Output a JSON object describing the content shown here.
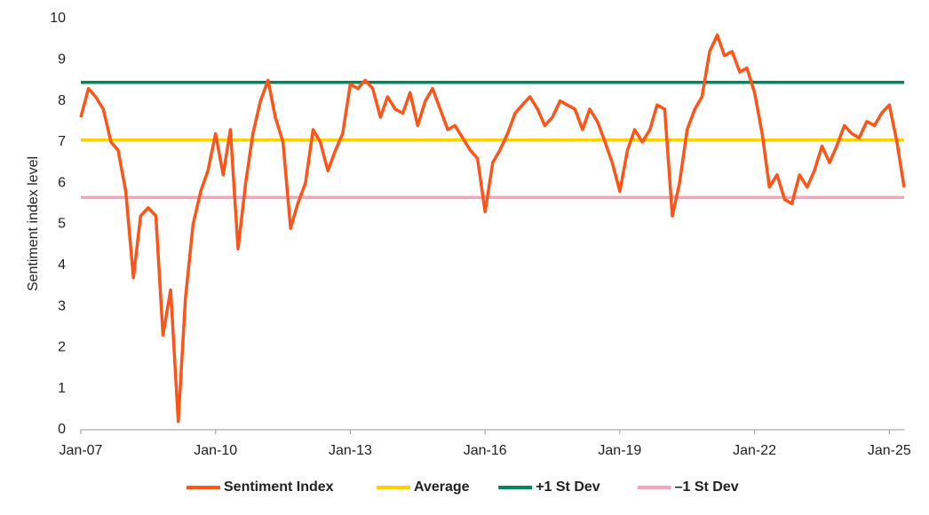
{
  "chart_data": {
    "type": "line",
    "y_label": "Sentiment index level",
    "xlim": [
      2007,
      2025.33
    ],
    "ylim": [
      0,
      10
    ],
    "yticks": [
      0,
      1,
      2,
      3,
      4,
      5,
      6,
      7,
      8,
      9,
      10
    ],
    "xticks": [
      {
        "value": 2007,
        "label": "Jan-07"
      },
      {
        "value": 2010,
        "label": "Jan-10"
      },
      {
        "value": 2013,
        "label": "Jan-13"
      },
      {
        "value": 2016,
        "label": "Jan-16"
      },
      {
        "value": 2019,
        "label": "Jan-19"
      },
      {
        "value": 2022,
        "label": "Jan-22"
      },
      {
        "value": 2025,
        "label": "Jan-25"
      }
    ],
    "grid": false,
    "legend": "bottom",
    "series": [
      {
        "name": "Sentiment Index",
        "color": "#ff5418",
        "x": [
          2007,
          2007.17,
          2007.33,
          2007.5,
          2007.67,
          2007.83,
          2008,
          2008.17,
          2008.33,
          2008.5,
          2008.67,
          2008.83,
          2009,
          2009.17,
          2009.33,
          2009.5,
          2009.67,
          2009.83,
          2010,
          2010.17,
          2010.33,
          2010.5,
          2010.67,
          2010.83,
          2011,
          2011.17,
          2011.33,
          2011.5,
          2011.67,
          2011.83,
          2012,
          2012.17,
          2012.33,
          2012.5,
          2012.67,
          2012.83,
          2013,
          2013.17,
          2013.33,
          2013.5,
          2013.67,
          2013.83,
          2014,
          2014.17,
          2014.33,
          2014.5,
          2014.67,
          2014.83,
          2015,
          2015.17,
          2015.33,
          2015.5,
          2015.67,
          2015.83,
          2016,
          2016.17,
          2016.33,
          2016.5,
          2016.67,
          2016.83,
          2017,
          2017.17,
          2017.33,
          2017.5,
          2017.67,
          2017.83,
          2018,
          2018.17,
          2018.33,
          2018.5,
          2018.67,
          2018.83,
          2019,
          2019.17,
          2019.33,
          2019.5,
          2019.67,
          2019.83,
          2020,
          2020.17,
          2020.33,
          2020.5,
          2020.67,
          2020.83,
          2021,
          2021.17,
          2021.33,
          2021.5,
          2021.67,
          2021.83,
          2022,
          2022.17,
          2022.33,
          2022.5,
          2022.67,
          2022.83,
          2023,
          2023.17,
          2023.33,
          2023.5,
          2023.67,
          2023.83,
          2024,
          2024.17,
          2024.33,
          2024.5,
          2024.67,
          2024.83,
          2025,
          2025.17,
          2025.33
        ],
        "values": [
          7.6,
          8.3,
          8.1,
          7.8,
          7.0,
          6.8,
          5.8,
          3.7,
          5.2,
          5.4,
          5.2,
          2.3,
          3.4,
          0.2,
          3.2,
          5.0,
          5.8,
          6.3,
          7.2,
          6.2,
          7.3,
          4.4,
          6.0,
          7.2,
          8.0,
          8.5,
          7.6,
          7.0,
          4.9,
          5.5,
          6.0,
          7.3,
          7.0,
          6.3,
          6.8,
          7.2,
          8.4,
          8.3,
          8.5,
          8.3,
          7.6,
          8.1,
          7.8,
          7.7,
          8.2,
          7.4,
          8.0,
          8.3,
          7.8,
          7.3,
          7.4,
          7.1,
          6.8,
          6.6,
          5.3,
          6.5,
          6.8,
          7.2,
          7.7,
          7.9,
          8.1,
          7.8,
          7.4,
          7.6,
          8.0,
          7.9,
          7.8,
          7.3,
          7.8,
          7.5,
          7.0,
          6.5,
          5.8,
          6.8,
          7.3,
          7.0,
          7.3,
          7.9,
          7.8,
          5.2,
          6.0,
          7.3,
          7.8,
          8.1,
          9.2,
          9.6,
          9.1,
          9.2,
          8.7,
          8.8,
          8.2,
          7.2,
          5.9,
          6.2,
          5.6,
          5.5,
          6.2,
          5.9,
          6.3,
          6.9,
          6.5,
          6.9,
          7.4,
          7.2,
          7.1,
          7.5,
          7.4,
          7.7,
          7.9,
          7.0,
          5.9
        ]
      },
      {
        "name": "Average",
        "color": "#ffd000",
        "value": 7.05
      },
      {
        "name": "+1 St Dev",
        "color": "#00875a",
        "value": 8.45
      },
      {
        "name": "–1 St Dev",
        "color": "#f7a3b9",
        "value": 5.65
      }
    ]
  }
}
